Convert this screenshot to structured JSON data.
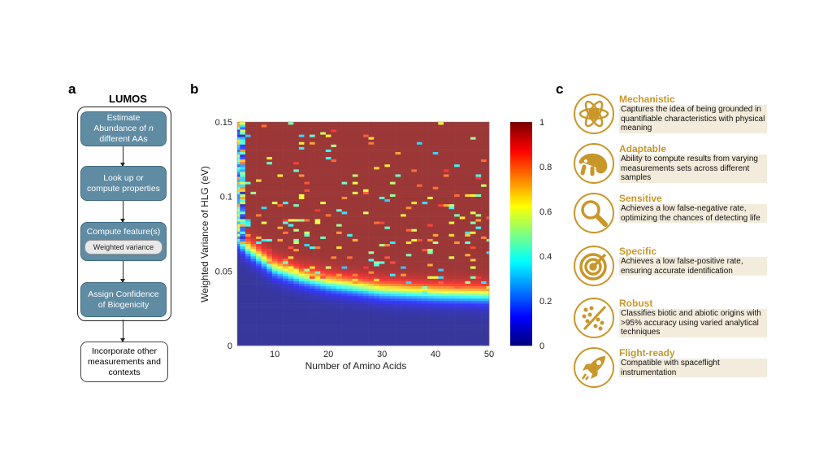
{
  "panel_a": {
    "label": "a",
    "title": "LUMOS",
    "steps": [
      "Estimate Abundance of n different AAs",
      "Look up or compute properties",
      "Compute feature(s)",
      "Assign Confidence of Biogenicity"
    ],
    "step1_parts": [
      "Estimate",
      "Abundance of ",
      "n",
      "different AAs"
    ],
    "sub_feature": "Weighted variance",
    "final": "Incorporate other measurements and contexts"
  },
  "panel_b": {
    "label": "b"
  },
  "panel_c": {
    "label": "c",
    "accent": "#c9962a",
    "items": [
      {
        "title": "Mechanistic",
        "desc": "Captures the idea of being grounded in quantifiable characteristics with physical meaning",
        "icon": "atom-icon"
      },
      {
        "title": "Adaptable",
        "desc": "Ability to compute results from varying measurements sets across different samples",
        "icon": "chameleon-icon"
      },
      {
        "title": "Sensitive",
        "desc": "Achieves a low false-negative rate, optimizing the chances of detecting life",
        "icon": "magnifier-icon"
      },
      {
        "title": "Specific",
        "desc": "Achieves a low false-positive rate, ensuring accurate identification",
        "icon": "target-icon"
      },
      {
        "title": "Robust",
        "desc": "Classifies biotic and abiotic origins with >95% accuracy using varied analytical techniques",
        "icon": "scatter-divide-icon"
      },
      {
        "title": "Flight-ready",
        "desc": "Compatible with spaceflight instrumentation",
        "icon": "rocket-icon"
      }
    ]
  },
  "chart_data": {
    "type": "heatmap",
    "title": "",
    "xlabel": "Number of Amino Acids",
    "ylabel": "Weighted Variance of HLG (eV)",
    "xlim": [
      3,
      50
    ],
    "ylim": [
      0,
      0.15
    ],
    "xticks": [
      "10",
      "20",
      "30",
      "40",
      "50"
    ],
    "xtick_values": [
      10,
      20,
      30,
      40,
      50
    ],
    "yticks": [
      "0",
      "0.05",
      "0.1",
      "0.15"
    ],
    "ytick_values": [
      0,
      0.05,
      0.1,
      0.15
    ],
    "colormap": "jet",
    "colorbar_range": [
      0,
      1
    ],
    "colorbar_ticks": [
      "0",
      "0.2",
      "0.4",
      "0.6",
      "0.8",
      "1"
    ],
    "boundary": [
      [
        3,
        0.072
      ],
      [
        5,
        0.065
      ],
      [
        10,
        0.052
      ],
      [
        15,
        0.046
      ],
      [
        20,
        0.042
      ],
      [
        30,
        0.037
      ],
      [
        40,
        0.035
      ],
      [
        50,
        0.034
      ]
    ],
    "value_below_boundary": 0,
    "value_above_boundary": 1,
    "grid": false
  }
}
